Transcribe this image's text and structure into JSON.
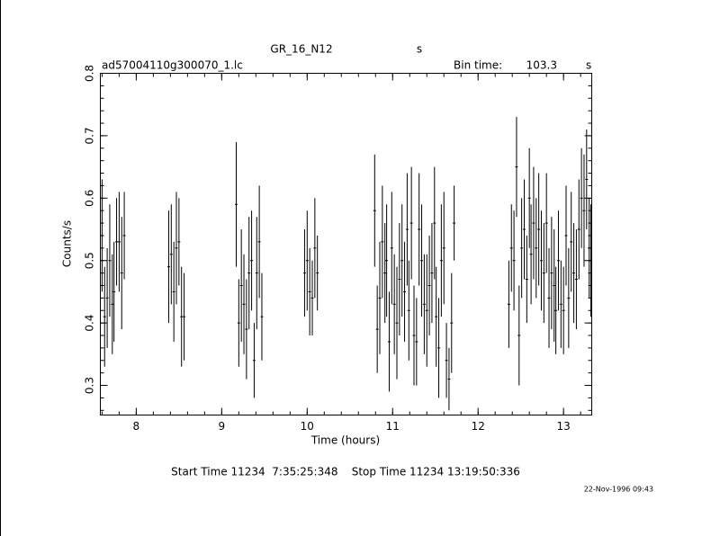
{
  "chart_data": {
    "type": "errorbar",
    "title": "GR_16_N12",
    "title_unit": "s",
    "file_label": "ad57004110g300070_1.lc",
    "bin_time_label": "Bin time:",
    "bin_time": 103.3,
    "bin_time_unit": "s",
    "x_label": "Time (hours)",
    "y_label": "Counts/s",
    "start_stop": "Start Time 11234  7:35:25:348    Stop Time 11234 13:19:50:336",
    "date_stamp": "22-Nov-1996 09:43",
    "xlim": [
      7.58,
      13.33
    ],
    "ylim": [
      0.2525,
      0.8
    ],
    "xticks": [
      8,
      9,
      10,
      11,
      12,
      13
    ],
    "yticks": [
      0.3,
      0.4,
      0.5,
      0.6,
      0.7,
      0.8
    ],
    "color": "#000000",
    "x": [
      7.6,
      7.63,
      7.66,
      7.69,
      7.72,
      7.74,
      7.77,
      7.8,
      7.83,
      7.86,
      8.38,
      8.41,
      8.44,
      8.47,
      8.5,
      8.53,
      8.56,
      9.17,
      9.2,
      9.23,
      9.26,
      9.29,
      9.32,
      9.35,
      9.38,
      9.41,
      9.44,
      9.47,
      9.97,
      10.0,
      10.03,
      10.06,
      10.09,
      10.12,
      10.79,
      10.82,
      10.85,
      10.88,
      10.91,
      10.93,
      10.96,
      10.99,
      11.02,
      11.05,
      11.08,
      11.11,
      11.14,
      11.17,
      11.19,
      11.22,
      11.25,
      11.28,
      11.31,
      11.34,
      11.37,
      11.4,
      11.43,
      11.46,
      11.49,
      11.51,
      11.54,
      11.57,
      11.6,
      11.63,
      11.66,
      11.69,
      11.72,
      12.36,
      12.39,
      12.42,
      12.45,
      12.48,
      12.51,
      12.54,
      12.57,
      12.6,
      12.62,
      12.65,
      12.68,
      12.71,
      12.74,
      12.77,
      12.8,
      12.83,
      12.86,
      12.89,
      12.91,
      12.94,
      12.97,
      13.0,
      13.03,
      13.06,
      13.09,
      13.12,
      13.15,
      13.18,
      13.21,
      13.24,
      13.27,
      13.3,
      13.32
    ],
    "values": [
      0.54,
      0.41,
      0.44,
      0.5,
      0.43,
      0.45,
      0.53,
      0.53,
      0.48,
      0.54,
      0.49,
      0.51,
      0.45,
      0.52,
      0.53,
      0.41,
      0.41,
      0.59,
      0.4,
      0.46,
      0.43,
      0.39,
      0.48,
      0.5,
      0.34,
      0.48,
      0.53,
      0.41,
      0.48,
      0.5,
      0.45,
      0.44,
      0.52,
      0.48,
      0.58,
      0.39,
      0.44,
      0.53,
      0.48,
      0.5,
      0.37,
      0.52,
      0.43,
      0.4,
      0.47,
      0.5,
      0.45,
      0.55,
      0.42,
      0.56,
      0.38,
      0.37,
      0.55,
      0.5,
      0.43,
      0.42,
      0.46,
      0.48,
      0.56,
      0.41,
      0.36,
      0.5,
      0.52,
      0.34,
      0.31,
      0.4,
      0.56,
      0.43,
      0.52,
      0.5,
      0.65,
      0.38,
      0.52,
      0.55,
      0.47,
      0.6,
      0.51,
      0.56,
      0.52,
      0.55,
      0.5,
      0.48,
      0.56,
      0.44,
      0.48,
      0.46,
      0.42,
      0.5,
      0.43,
      0.42,
      0.54,
      0.44,
      0.53,
      0.48,
      0.47,
      0.55,
      0.6,
      0.58,
      0.63,
      0.52,
      0.5
    ],
    "errors": [
      0.09,
      0.08,
      0.08,
      0.09,
      0.08,
      0.08,
      0.07,
      0.08,
      0.09,
      0.07,
      0.09,
      0.08,
      0.08,
      0.09,
      0.07,
      0.08,
      0.07,
      0.1,
      0.07,
      0.09,
      0.08,
      0.08,
      0.09,
      0.08,
      0.06,
      0.09,
      0.09,
      0.07,
      0.07,
      0.08,
      0.07,
      0.06,
      0.08,
      0.06,
      0.09,
      0.07,
      0.09,
      0.09,
      0.08,
      0.09,
      0.08,
      0.09,
      0.08,
      0.09,
      0.09,
      0.09,
      0.08,
      0.09,
      0.08,
      0.09,
      0.08,
      0.07,
      0.09,
      0.09,
      0.08,
      0.09,
      0.08,
      0.08,
      0.09,
      0.08,
      0.08,
      0.09,
      0.09,
      0.06,
      0.05,
      0.08,
      0.06,
      0.07,
      0.07,
      0.08,
      0.08,
      0.08,
      0.08,
      0.08,
      0.07,
      0.08,
      0.08,
      0.09,
      0.08,
      0.09,
      0.08,
      0.08,
      0.08,
      0.08,
      0.09,
      0.09,
      0.07,
      0.08,
      0.07,
      0.07,
      0.08,
      0.08,
      0.08,
      0.08,
      0.08,
      0.08,
      0.08,
      0.09,
      0.08,
      0.08,
      0.09
    ]
  }
}
